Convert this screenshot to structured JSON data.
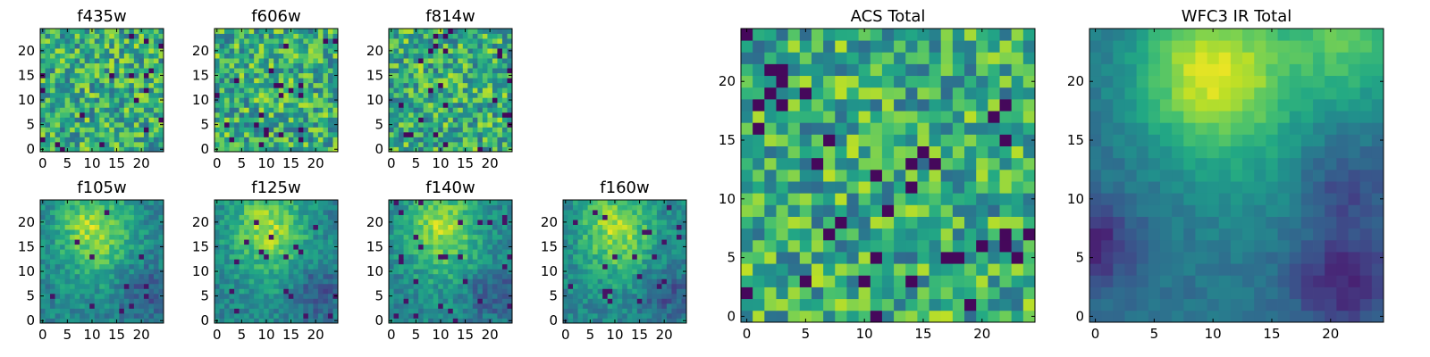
{
  "figure_title": "",
  "chart_data": [
    {
      "type": "heatmap",
      "title": "f435w",
      "colormap": "viridis",
      "grid": false,
      "xlim": [
        -0.5,
        24.5
      ],
      "ylim": [
        -0.5,
        24.5
      ],
      "xticks": [
        "0",
        "5",
        "10",
        "15",
        "20"
      ],
      "yticks": [
        "0",
        "5",
        "10",
        "15",
        "20"
      ],
      "cells_x": 25,
      "cells_y": 25,
      "value_range": [
        0,
        1
      ]
    },
    {
      "type": "heatmap",
      "title": "f606w",
      "colormap": "viridis",
      "grid": false,
      "xlim": [
        -0.5,
        24.5
      ],
      "ylim": [
        -0.5,
        24.5
      ],
      "xticks": [
        "0",
        "5",
        "10",
        "15",
        "20"
      ],
      "yticks": [
        "0",
        "5",
        "10",
        "15",
        "20"
      ],
      "cells_x": 25,
      "cells_y": 25,
      "value_range": [
        0,
        1
      ]
    },
    {
      "type": "heatmap",
      "title": "f814w",
      "colormap": "viridis",
      "grid": false,
      "xlim": [
        -0.5,
        24.5
      ],
      "ylim": [
        -0.5,
        24.5
      ],
      "xticks": [
        "0",
        "5",
        "10",
        "15",
        "20"
      ],
      "yticks": [
        "0",
        "5",
        "10",
        "15",
        "20"
      ],
      "cells_x": 25,
      "cells_y": 25,
      "value_range": [
        0,
        1
      ]
    },
    {
      "type": "heatmap",
      "title": "f105w",
      "colormap": "viridis",
      "grid": false,
      "xlim": [
        -0.5,
        24.5
      ],
      "ylim": [
        -0.5,
        24.5
      ],
      "xticks": [
        "0",
        "5",
        "10",
        "15",
        "20"
      ],
      "yticks": [
        "0",
        "5",
        "10",
        "15",
        "20"
      ],
      "cells_x": 25,
      "cells_y": 25,
      "value_range": [
        0,
        1
      ]
    },
    {
      "type": "heatmap",
      "title": "f125w",
      "colormap": "viridis",
      "grid": false,
      "xlim": [
        -0.5,
        24.5
      ],
      "ylim": [
        -0.5,
        24.5
      ],
      "xticks": [
        "0",
        "5",
        "10",
        "15",
        "20"
      ],
      "yticks": [
        "0",
        "5",
        "10",
        "15",
        "20"
      ],
      "cells_x": 25,
      "cells_y": 25,
      "value_range": [
        0,
        1
      ]
    },
    {
      "type": "heatmap",
      "title": "f140w",
      "colormap": "viridis",
      "grid": false,
      "xlim": [
        -0.5,
        24.5
      ],
      "ylim": [
        -0.5,
        24.5
      ],
      "xticks": [
        "0",
        "5",
        "10",
        "15",
        "20"
      ],
      "yticks": [
        "0",
        "5",
        "10",
        "15",
        "20"
      ],
      "cells_x": 25,
      "cells_y": 25,
      "value_range": [
        0,
        1
      ]
    },
    {
      "type": "heatmap",
      "title": "f160w",
      "colormap": "viridis",
      "grid": false,
      "xlim": [
        -0.5,
        24.5
      ],
      "ylim": [
        -0.5,
        24.5
      ],
      "xticks": [
        "0",
        "5",
        "10",
        "15",
        "20"
      ],
      "yticks": [
        "0",
        "5",
        "10",
        "15",
        "20"
      ],
      "cells_x": 25,
      "cells_y": 25,
      "value_range": [
        0,
        1
      ]
    },
    {
      "type": "heatmap",
      "title": "ACS Total",
      "colormap": "viridis",
      "grid": false,
      "xlim": [
        -0.5,
        24.5
      ],
      "ylim": [
        -0.5,
        24.5
      ],
      "xticks": [
        "0",
        "5",
        "10",
        "15",
        "20"
      ],
      "yticks": [
        "0",
        "5",
        "10",
        "15",
        "20"
      ],
      "cells_x": 25,
      "cells_y": 25,
      "value_range": [
        0,
        1
      ]
    },
    {
      "type": "heatmap",
      "title": "WFC3 IR Total",
      "colormap": "viridis",
      "grid": false,
      "xlim": [
        -0.5,
        24.5
      ],
      "ylim": [
        -0.5,
        24.5
      ],
      "xticks": [
        "0",
        "5",
        "10",
        "15",
        "20"
      ],
      "yticks": [
        "0",
        "5",
        "10",
        "15",
        "20"
      ],
      "cells_x": 25,
      "cells_y": 25,
      "value_range": [
        0,
        1
      ]
    }
  ]
}
